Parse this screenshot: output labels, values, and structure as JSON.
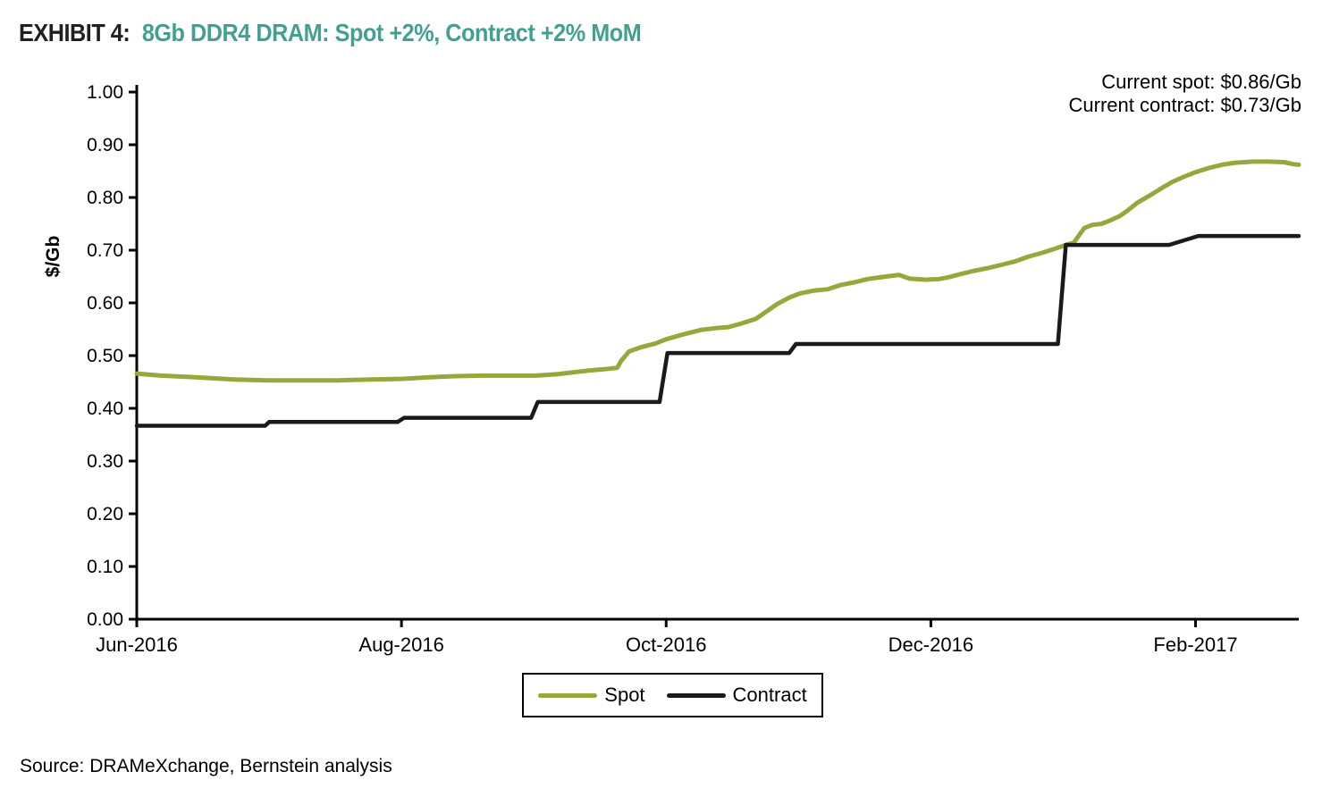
{
  "page": {
    "exhibit_label": "EXHIBIT 4:",
    "title": "8Gb DDR4 DRAM: Spot +2%, Contract +2% MoM",
    "title_color": "#42A093",
    "annotation": {
      "line1": "Current spot: $0.86/Gb",
      "line2": "Current contract: $0.73/Gb"
    },
    "source": "Source: DRAMeXchange, Bernstein analysis"
  },
  "chart_data": {
    "type": "line",
    "title": "8Gb DDR4 DRAM: Spot +2%, Contract +2% MoM",
    "xlabel": "",
    "ylabel": "$/Gb",
    "x_unit": "months since Jun-2016",
    "xlim": [
      0,
      8.78
    ],
    "ylim": [
      0.0,
      1.0
    ],
    "grid": false,
    "legend_position": "bottom",
    "x_ticks": [
      {
        "m": 0,
        "label": "Jun-2016"
      },
      {
        "m": 2,
        "label": "Aug-2016"
      },
      {
        "m": 4,
        "label": "Oct-2016"
      },
      {
        "m": 6,
        "label": "Dec-2016"
      },
      {
        "m": 8,
        "label": "Feb-2017"
      }
    ],
    "y_ticks": [
      "0.00",
      "0.10",
      "0.20",
      "0.30",
      "0.40",
      "0.50",
      "0.60",
      "0.70",
      "0.80",
      "0.90",
      "1.00"
    ],
    "series": [
      {
        "name": "Spot",
        "color": "#95A83C",
        "width": 5,
        "current_value_label": "$0.86/Gb",
        "points": [
          [
            0.0,
            0.466
          ],
          [
            0.18,
            0.462
          ],
          [
            0.45,
            0.459
          ],
          [
            0.72,
            0.455
          ],
          [
            0.99,
            0.453
          ],
          [
            1.26,
            0.453
          ],
          [
            1.53,
            0.453
          ],
          [
            1.8,
            0.455
          ],
          [
            2.01,
            0.456
          ],
          [
            2.21,
            0.459
          ],
          [
            2.41,
            0.461
          ],
          [
            2.61,
            0.462
          ],
          [
            3.02,
            0.462
          ],
          [
            3.19,
            0.465
          ],
          [
            3.32,
            0.469
          ],
          [
            3.43,
            0.472
          ],
          [
            3.53,
            0.474
          ],
          [
            3.63,
            0.477
          ],
          [
            3.66,
            0.49
          ],
          [
            3.72,
            0.508
          ],
          [
            3.81,
            0.516
          ],
          [
            3.92,
            0.523
          ],
          [
            4.0,
            0.531
          ],
          [
            4.14,
            0.541
          ],
          [
            4.27,
            0.549
          ],
          [
            4.37,
            0.552
          ],
          [
            4.47,
            0.554
          ],
          [
            4.57,
            0.561
          ],
          [
            4.68,
            0.57
          ],
          [
            4.76,
            0.584
          ],
          [
            4.84,
            0.598
          ],
          [
            4.93,
            0.61
          ],
          [
            5.01,
            0.618
          ],
          [
            5.11,
            0.623
          ],
          [
            5.22,
            0.626
          ],
          [
            5.32,
            0.634
          ],
          [
            5.42,
            0.639
          ],
          [
            5.52,
            0.645
          ],
          [
            5.66,
            0.65
          ],
          [
            5.76,
            0.653
          ],
          [
            5.84,
            0.646
          ],
          [
            5.96,
            0.644
          ],
          [
            6.06,
            0.645
          ],
          [
            6.14,
            0.649
          ],
          [
            6.23,
            0.655
          ],
          [
            6.33,
            0.661
          ],
          [
            6.43,
            0.666
          ],
          [
            6.53,
            0.672
          ],
          [
            6.64,
            0.679
          ],
          [
            6.74,
            0.688
          ],
          [
            6.84,
            0.695
          ],
          [
            6.94,
            0.703
          ],
          [
            7.02,
            0.71
          ],
          [
            7.08,
            0.714
          ],
          [
            7.11,
            0.725
          ],
          [
            7.16,
            0.742
          ],
          [
            7.22,
            0.748
          ],
          [
            7.29,
            0.75
          ],
          [
            7.36,
            0.757
          ],
          [
            7.43,
            0.765
          ],
          [
            7.49,
            0.776
          ],
          [
            7.56,
            0.79
          ],
          [
            7.65,
            0.803
          ],
          [
            7.74,
            0.817
          ],
          [
            7.82,
            0.829
          ],
          [
            7.9,
            0.838
          ],
          [
            8.0,
            0.848
          ],
          [
            8.1,
            0.856
          ],
          [
            8.2,
            0.862
          ],
          [
            8.3,
            0.866
          ],
          [
            8.43,
            0.868
          ],
          [
            8.55,
            0.868
          ],
          [
            8.67,
            0.867
          ],
          [
            8.74,
            0.863
          ],
          [
            8.78,
            0.862
          ]
        ]
      },
      {
        "name": "Contract",
        "color": "#1A1A1A",
        "width": 4.5,
        "current_value_label": "$0.73/Gb",
        "points": [
          [
            0.0,
            0.367
          ],
          [
            0.97,
            0.367
          ],
          [
            1.0,
            0.374
          ],
          [
            1.97,
            0.374
          ],
          [
            2.02,
            0.382
          ],
          [
            2.98,
            0.382
          ],
          [
            3.03,
            0.412
          ],
          [
            3.95,
            0.412
          ],
          [
            4.01,
            0.505
          ],
          [
            4.93,
            0.505
          ],
          [
            4.98,
            0.522
          ],
          [
            6.96,
            0.522
          ],
          [
            7.02,
            0.71
          ],
          [
            7.8,
            0.71
          ],
          [
            8.02,
            0.727
          ],
          [
            8.78,
            0.727
          ]
        ]
      }
    ]
  }
}
